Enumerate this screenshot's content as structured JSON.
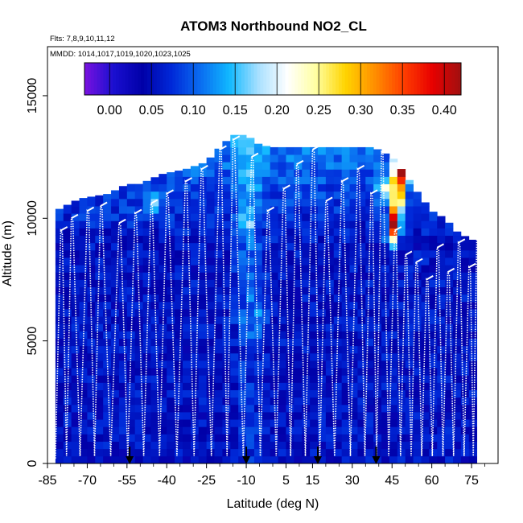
{
  "chart_data": {
    "type": "heatmap",
    "title": "ATOM3 Northbound NO2_CL",
    "subtitle_flights": "Flts: 7,8,9,10,11,12",
    "subtitle_dates": "MMDD: 1014,1017,1019,1020,1023,1025",
    "xlabel": "Latitude (deg N)",
    "ylabel": "Altitude (m)",
    "xlim": [
      -85,
      85
    ],
    "ylim": [
      0,
      17000
    ],
    "x_ticks": [
      -85,
      -70,
      -55,
      -40,
      -25,
      -10,
      5,
      15,
      30,
      45,
      60,
      75
    ],
    "x_tick_labels": [
      "-85",
      "-70",
      "-55",
      "-40",
      "-25",
      "-10",
      "5",
      "15",
      "30",
      "45",
      "60",
      "75"
    ],
    "y_ticks": [
      0,
      5000,
      10000,
      15000
    ],
    "y_tick_labels": [
      "0",
      "5000",
      "10000",
      "15000"
    ],
    "colorbar": {
      "min": -0.03,
      "max": 0.42,
      "ticks": [
        0.0,
        0.05,
        0.1,
        0.15,
        0.2,
        0.25,
        0.3,
        0.35,
        0.4
      ],
      "tick_labels": [
        "0.00",
        "0.05",
        "0.10",
        "0.15",
        "0.20",
        "0.25",
        "0.30",
        "0.35",
        "0.40"
      ],
      "colors": [
        "#7a12e0",
        "#1a0fd0",
        "#0000a8",
        "#0028d8",
        "#0a6cf0",
        "#10b8ff",
        "#a8e0ff",
        "#ffffff",
        "#ffffa0",
        "#ffd400",
        "#ff9000",
        "#ff4000",
        "#e80000",
        "#a01010"
      ]
    },
    "ceiling_profile": {
      "lat": [
        -82,
        -73,
        -62,
        -55,
        -50,
        -42,
        -33,
        -25,
        -20,
        -15,
        -10,
        -5,
        0,
        10,
        20,
        30,
        38,
        45,
        50,
        55,
        60,
        65,
        70,
        78
      ],
      "alt": [
        10300,
        10800,
        11000,
        11400,
        11400,
        11800,
        12000,
        12300,
        12900,
        13400,
        13400,
        13000,
        12900,
        12900,
        12900,
        12900,
        12900,
        12500,
        11800,
        11000,
        10300,
        10000,
        9400,
        9000
      ]
    },
    "hotspots": [
      {
        "lat": 46,
        "alt": 9900,
        "value": 0.38
      },
      {
        "lat": 47,
        "alt": 10800,
        "value": 0.32
      },
      {
        "lat": 47,
        "alt": 11600,
        "value": 0.28
      },
      {
        "lat": 48,
        "alt": 12300,
        "value": 0.26
      },
      {
        "lat": 50,
        "alt": 11800,
        "value": 0.25
      },
      {
        "lat": 45,
        "alt": 9300,
        "value": 0.22
      },
      {
        "lat": 42,
        "alt": 11200,
        "value": 0.18
      },
      {
        "lat": -10,
        "alt": 9800,
        "value": 0.12
      },
      {
        "lat": -5,
        "alt": 6000,
        "value": 0.09
      },
      {
        "lat": -45,
        "alt": 10600,
        "value": 0.16
      }
    ],
    "profile_tops": [
      {
        "lat": -80,
        "alt": 9500
      },
      {
        "lat": -76,
        "alt": 10000
      },
      {
        "lat": -70,
        "alt": 10300
      },
      {
        "lat": -65,
        "alt": 10500
      },
      {
        "lat": -58,
        "alt": 9800
      },
      {
        "lat": -52,
        "alt": 10200
      },
      {
        "lat": -46,
        "alt": 10600
      },
      {
        "lat": -40,
        "alt": 11000
      },
      {
        "lat": -33,
        "alt": 11500
      },
      {
        "lat": -27,
        "alt": 12000
      },
      {
        "lat": -20,
        "alt": 12800
      },
      {
        "lat": -15,
        "alt": 13200
      },
      {
        "lat": -8,
        "alt": 12500
      },
      {
        "lat": -2,
        "alt": 10300
      },
      {
        "lat": 4,
        "alt": 11200
      },
      {
        "lat": 9,
        "alt": 12200
      },
      {
        "lat": 15,
        "alt": 12800
      },
      {
        "lat": 20,
        "alt": 10700
      },
      {
        "lat": 26,
        "alt": 11500
      },
      {
        "lat": 32,
        "alt": 12000
      },
      {
        "lat": 37,
        "alt": 11000
      },
      {
        "lat": 41,
        "alt": 12700
      },
      {
        "lat": 46,
        "alt": 9500
      },
      {
        "lat": 50,
        "alt": 8500
      },
      {
        "lat": 54,
        "alt": 8200
      },
      {
        "lat": 58,
        "alt": 7500
      },
      {
        "lat": 62,
        "alt": 8800
      },
      {
        "lat": 66,
        "alt": 7800
      },
      {
        "lat": 70,
        "alt": 9000
      },
      {
        "lat": 74,
        "alt": 8000
      },
      {
        "lat": 77,
        "alt": 9200
      }
    ],
    "arrow_markers_lat": [
      -54,
      -10,
      17,
      39
    ]
  }
}
